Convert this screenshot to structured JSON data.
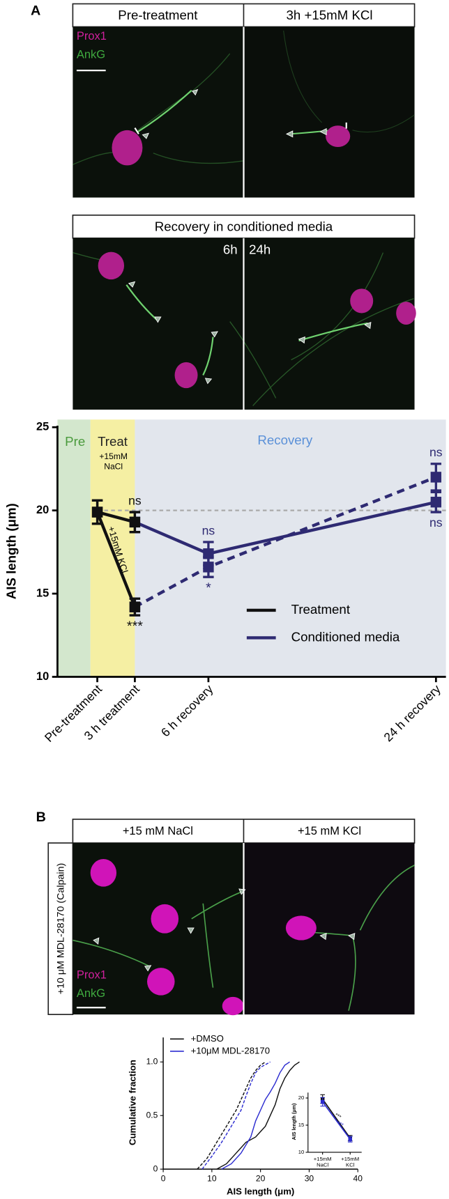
{
  "panel_labels": [
    "A",
    "B"
  ],
  "micrographs": {
    "a_top": {
      "headers": [
        "Pre-treatment",
        "3h +15mM KCl"
      ],
      "stains": [
        "Prox1",
        "AnkG"
      ]
    },
    "a_recovery": {
      "header": "Recovery in conditioned media",
      "times": [
        "6h",
        "24h"
      ]
    },
    "b": {
      "headers": [
        "+15 mM NaCl",
        "+15 mM KCl"
      ],
      "side_label": "+10 μM MDL-28170 (Calpain)",
      "stains": [
        "Prox1",
        "AnkG"
      ]
    }
  },
  "chart_data": [
    {
      "type": "line",
      "ylabel": "AIS length (μm)",
      "categories": [
        "Pre-treatment",
        "3 h treatment",
        "6 h recovery",
        "24 h recovery"
      ],
      "ylim": [
        10,
        25
      ],
      "yticks": [
        10,
        15,
        20,
        25
      ],
      "reference_line": 20,
      "regions": [
        {
          "label": "Pre",
          "color": "#d3e7cd",
          "text_color": "#4a9a3c"
        },
        {
          "label": "Treat",
          "color": "#f5efa3",
          "text_color": "#222222"
        },
        {
          "label": "Recovery",
          "color": "#e2e6ed",
          "text_color": "#5a90d8"
        }
      ],
      "annotations": [
        "+15mM NaCl",
        "+15mM KCl"
      ],
      "legend": [
        {
          "label": "Treatment",
          "color": "#111111"
        },
        {
          "label": "Conditioned media",
          "color": "#2e2a72"
        }
      ],
      "series": [
        {
          "color": "#111111",
          "dashed": false,
          "values": [
            19.9,
            19.3,
            null,
            null
          ],
          "errors": [
            0.7,
            0.6,
            null,
            null
          ],
          "significance": [
            null,
            "ns",
            null,
            null
          ]
        },
        {
          "color": "#111111",
          "dashed": false,
          "values": [
            19.9,
            14.2,
            null,
            null
          ],
          "errors": [
            0.7,
            0.5,
            null,
            null
          ],
          "significance": [
            null,
            "***",
            null,
            null
          ]
        },
        {
          "color": "#2e2a72",
          "dashed": false,
          "values": [
            null,
            19.3,
            17.4,
            20.5
          ],
          "errors": [
            null,
            0.6,
            0.7,
            0.6
          ],
          "significance": [
            null,
            null,
            "ns",
            "ns"
          ]
        },
        {
          "color": "#2e2a72",
          "dashed": true,
          "values": [
            null,
            14.2,
            16.6,
            22.0
          ],
          "errors": [
            null,
            0.5,
            0.6,
            0.8
          ],
          "significance": [
            null,
            null,
            "*",
            "ns"
          ]
        }
      ]
    },
    {
      "type": "cumulative",
      "xlabel": "AIS length (μm)",
      "ylabel": "Cumulative fraction",
      "xlim": [
        0,
        40
      ],
      "xticks": [
        0,
        10,
        20,
        30,
        40
      ],
      "ylim": [
        0,
        1
      ],
      "yticks": [
        0,
        0.5,
        {
          "value": 1,
          "label": "1.0"
        }
      ],
      "legend": [
        {
          "label": "+DMSO",
          "color": "#111111"
        },
        {
          "label": "+10μM MDL-28170",
          "color": "#2b2bd0"
        }
      ],
      "series": [
        {
          "color": "#111111",
          "dashed": true,
          "x": [
            7,
            9,
            11,
            13,
            15,
            16,
            17,
            18,
            19,
            20,
            21
          ],
          "values": [
            0,
            0.1,
            0.25,
            0.4,
            0.55,
            0.65,
            0.75,
            0.85,
            0.92,
            0.97,
            1
          ]
        },
        {
          "color": "#2b2bd0",
          "dashed": true,
          "x": [
            8,
            10,
            12,
            14,
            16,
            17,
            18,
            19,
            20,
            22
          ],
          "values": [
            0,
            0.12,
            0.25,
            0.4,
            0.55,
            0.68,
            0.8,
            0.9,
            0.95,
            1
          ]
        },
        {
          "color": "#111111",
          "dashed": false,
          "x": [
            11,
            13,
            15,
            17,
            19,
            20,
            21,
            22,
            23,
            24,
            25,
            26,
            27,
            28
          ],
          "values": [
            0,
            0.05,
            0.15,
            0.25,
            0.3,
            0.35,
            0.4,
            0.5,
            0.6,
            0.75,
            0.85,
            0.92,
            0.97,
            1
          ]
        },
        {
          "color": "#2b2bd0",
          "dashed": false,
          "x": [
            12,
            14,
            16,
            18,
            19,
            20,
            21,
            22,
            23,
            24,
            25,
            26
          ],
          "values": [
            0,
            0.05,
            0.15,
            0.3,
            0.45,
            0.55,
            0.65,
            0.72,
            0.8,
            0.9,
            0.97,
            1
          ]
        }
      ]
    },
    {
      "type": "line",
      "ylabel": "AIS length (μm)",
      "categories": [
        "+15mM NaCl",
        "+15mM KCl"
      ],
      "ylim": [
        10,
        21
      ],
      "yticks": [
        10,
        15,
        20
      ],
      "series": [
        {
          "color": "#111111",
          "values": [
            19.8,
            12.6
          ],
          "errors": [
            0.8,
            0.5
          ],
          "significance": "***"
        },
        {
          "color": "#2b2bd0",
          "values": [
            19.3,
            12.4
          ],
          "errors": [
            0.8,
            0.5
          ],
          "significance": "***"
        }
      ]
    }
  ]
}
